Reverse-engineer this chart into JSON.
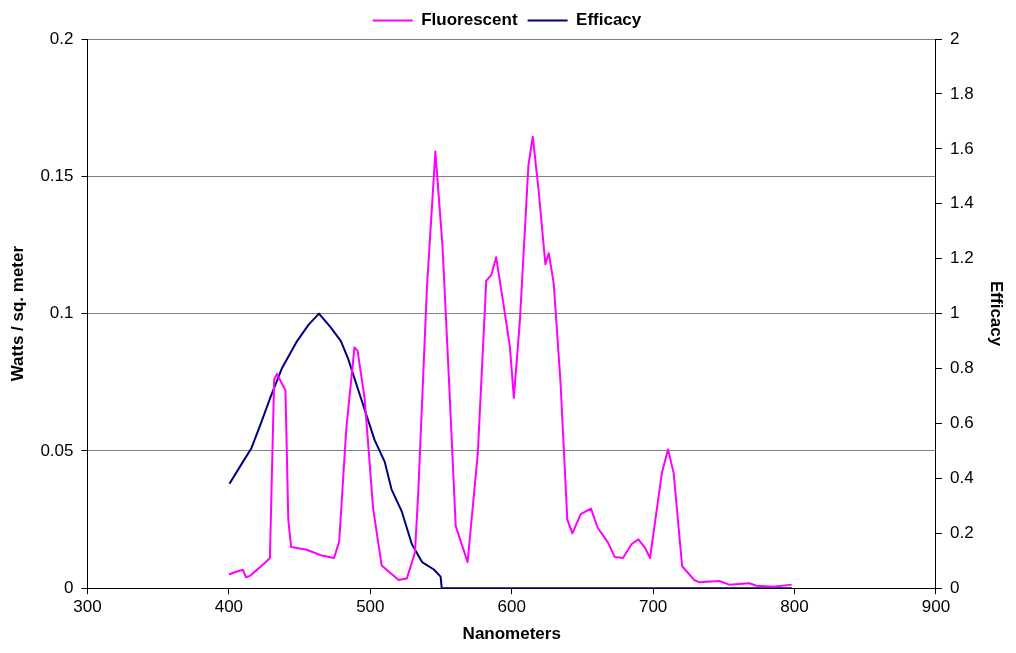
{
  "chart_data": {
    "type": "line",
    "xlabel": "Nanometers",
    "ylabel": "Watts / sq. meter",
    "y2label": "Efficacy",
    "xlim": [
      300,
      900
    ],
    "xticks": [
      300,
      400,
      500,
      600,
      700,
      800,
      900
    ],
    "ylim": [
      0,
      0.2
    ],
    "yticks": [
      0,
      0.05,
      0.1,
      0.15,
      0.2
    ],
    "y2lim": [
      0,
      2
    ],
    "y2ticks": [
      0,
      0.2,
      0.4,
      0.6,
      0.8,
      1,
      1.2,
      1.4,
      1.6,
      1.8,
      2
    ],
    "grid": "y",
    "legend": "top",
    "marker": "none",
    "line_style": "solid",
    "series": [
      {
        "name": "Fluorescent",
        "color": "#ff00ff",
        "x": [
          400,
          405,
          410,
          412,
          415,
          425,
          429,
          432,
          434,
          438,
          440,
          442,
          444,
          455,
          465,
          474.4,
          478,
          483,
          488.8,
          491,
          496,
          502,
          508,
          520,
          525.8,
          531.6,
          534,
          540,
          546,
          551,
          555.7,
          560.4,
          568.8,
          576,
          582,
          585.5,
          589,
          594,
          598.7,
          601.5,
          605.8,
          611.8,
          614.9,
          619,
          623.8,
          626.2,
          629.7,
          634.5,
          639.3,
          642.9,
          648.8,
          656,
          660.8,
          668,
          672.8,
          678.7,
          684.7,
          689.5,
          694.3,
          697.8,
          706.2,
          710.5,
          714.5,
          720.5,
          729,
          732.5,
          746.8,
          753.8,
          768,
          773,
          785,
          798
        ],
        "values": [
          0.005,
          0.006,
          0.0067,
          0.004,
          0.0045,
          0.009,
          0.011,
          0.076,
          0.078,
          0.074,
          0.072,
          0.025,
          0.015,
          0.014,
          0.012,
          0.011,
          0.017,
          0.058,
          0.0877,
          0.0864,
          0.069,
          0.029,
          0.0083,
          0.003,
          0.0035,
          0.013,
          0.036,
          0.109,
          0.159,
          0.125,
          0.075,
          0.0226,
          0.0095,
          0.049,
          0.112,
          0.114,
          0.1205,
          0.104,
          0.088,
          0.0693,
          0.0976,
          0.154,
          0.1644,
          0.145,
          0.118,
          0.122,
          0.111,
          0.075,
          0.025,
          0.02,
          0.027,
          0.029,
          0.022,
          0.0167,
          0.0114,
          0.011,
          0.016,
          0.0178,
          0.0147,
          0.011,
          0.042,
          0.0505,
          0.042,
          0.008,
          0.003,
          0.0022,
          0.0026,
          0.0013,
          0.0018,
          0.0009,
          0.0005,
          0.0013
        ]
      },
      {
        "name": "Efficacy",
        "color": "#000080",
        "axis": "y2",
        "x": [
          400.4,
          408.7,
          415.9,
          421.9,
          429,
          437.4,
          448.2,
          456.4,
          463.7,
          472,
          479.2,
          484,
          493.5,
          503,
          510.2,
          515,
          522.2,
          529.4,
          536.6,
          544.9,
          549.7,
          550.5,
          798
        ],
        "values": [
          0.38,
          0.45,
          0.51,
          0.59,
          0.69,
          0.8,
          0.9,
          0.96,
          1,
          0.95,
          0.9,
          0.84,
          0.69,
          0.54,
          0.46,
          0.36,
          0.28,
          0.16,
          0.095,
          0.068,
          0.042,
          0,
          0
        ]
      }
    ]
  }
}
